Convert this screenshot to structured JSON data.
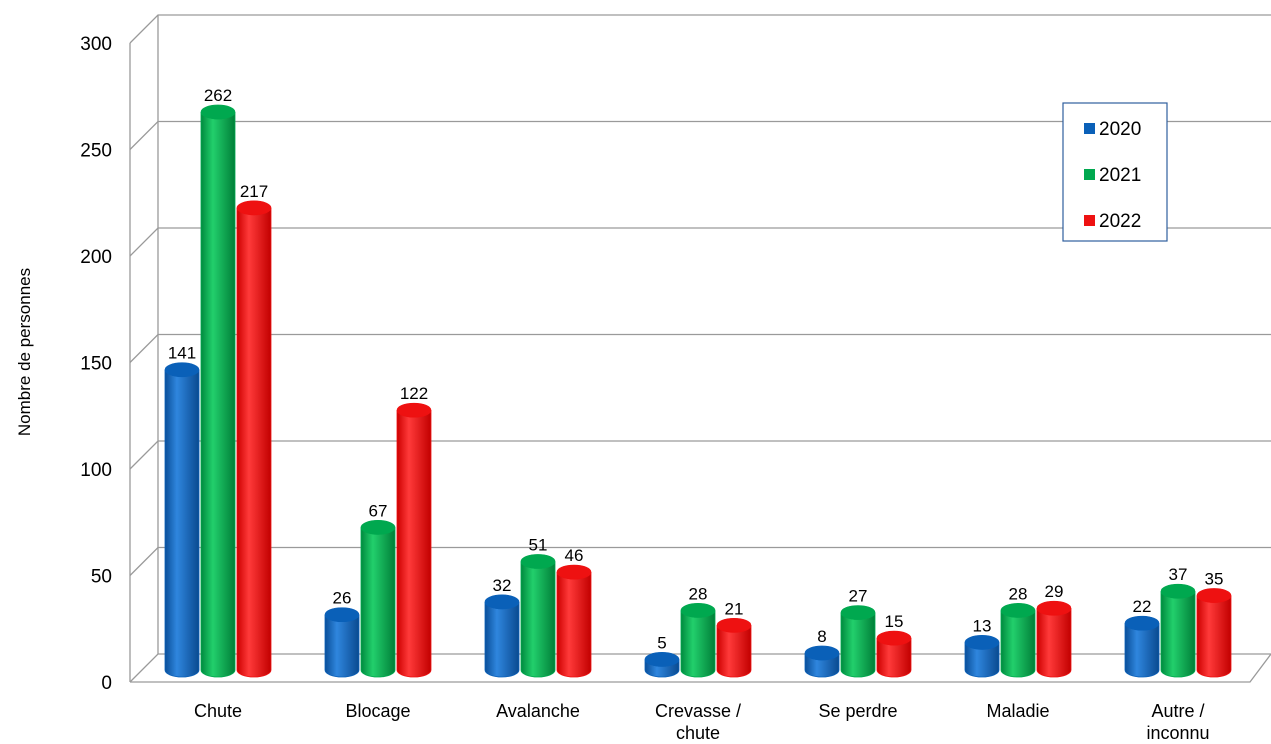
{
  "chart_data": {
    "type": "bar",
    "ylabel": "Nombre de personnes",
    "ylim": [
      0,
      300
    ],
    "yticks": [
      "0",
      "50",
      "100",
      "150",
      "200",
      "250",
      "300"
    ],
    "categories": [
      [
        "Chute"
      ],
      [
        "Blocage"
      ],
      [
        "Avalanche"
      ],
      [
        "Crevasse /",
        "chute"
      ],
      [
        "Se perdre"
      ],
      [
        "Maladie"
      ],
      [
        "Autre /",
        "inconnu"
      ]
    ],
    "series": [
      {
        "name": "2020",
        "color": "#0a60b8",
        "values": [
          141,
          26,
          32,
          5,
          8,
          13,
          22
        ]
      },
      {
        "name": "2021",
        "color": "#00a84f",
        "values": [
          262,
          67,
          51,
          28,
          27,
          28,
          37
        ]
      },
      {
        "name": "2022",
        "color": "#ee1111",
        "values": [
          217,
          122,
          46,
          21,
          15,
          29,
          35
        ]
      }
    ],
    "grid": true,
    "legend_position": "top-right"
  }
}
